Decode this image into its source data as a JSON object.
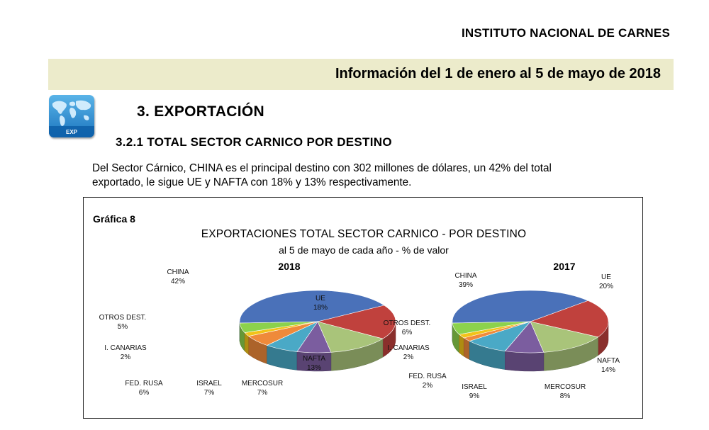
{
  "header": {
    "institute": "INSTITUTO NACIONAL DE CARNES",
    "period": "Información del 1 de enero al 5 de mayo de 2018"
  },
  "icon": {
    "name": "world-map-icon",
    "label": "EXP"
  },
  "section": {
    "title": "3. EXPORTACIÓN",
    "subtitle": "3.2.1 TOTAL SECTOR CARNICO POR DESTINO"
  },
  "paragraph": {
    "line1": "Del Sector Cárnico, CHINA es el principal destino con 302 millones de dólares, un 42% del total",
    "line2": "exportado, le sigue UE y NAFTA con 18% y 13% respectivamente."
  },
  "chart": {
    "caption": "Gráfica 8",
    "title": "EXPORTACIONES TOTAL SECTOR CARNICO - POR DESTINO",
    "subtitle": "al 5 de mayo  de cada año -   % de valor"
  },
  "chart_data": [
    {
      "type": "pie",
      "title": "2018",
      "categories": [
        "CHINA",
        "UE",
        "NAFTA",
        "MERCOSUR",
        "ISRAEL",
        "FED. RUSA",
        "I. CANARIAS",
        "OTROS DEST."
      ],
      "values": [
        42,
        18,
        13,
        7,
        7,
        6,
        2,
        5
      ],
      "value_labels": [
        "42%",
        "18%",
        "13%",
        "7%",
        "7%",
        "6%",
        "2%",
        "5%"
      ]
    },
    {
      "type": "pie",
      "title": "2017",
      "categories": [
        "CHINA",
        "UE",
        "NAFTA",
        "MERCOSUR",
        "ISRAEL",
        "FED. RUSA",
        "I. CANARIAS",
        "OTROS DEST."
      ],
      "values": [
        39,
        20,
        14,
        8,
        9,
        2,
        2,
        6
      ],
      "value_labels": [
        "39%",
        "20%",
        "14%",
        "8%",
        "9%",
        "2%",
        "2%",
        "6%"
      ]
    }
  ],
  "colors": {
    "CHINA": "#4a71b9",
    "UE": "#c0413d",
    "NAFTA": "#a9c47a",
    "MERCOSUR": "#7b5d9f",
    "ISRAEL": "#4aa9c6",
    "FED. RUSA": "#ef8a3a",
    "I. CANARIAS": "#f2c318",
    "OTROS DEST.": "#8cd24c",
    "banner": "#ecebcb"
  }
}
